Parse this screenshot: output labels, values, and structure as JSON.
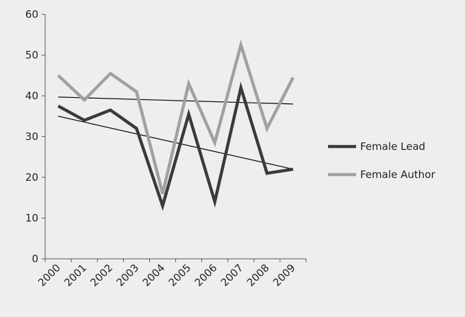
{
  "chart_data": {
    "type": "line",
    "title": "",
    "xlabel": "",
    "ylabel": "",
    "categories": [
      "2000",
      "2001",
      "2002",
      "2003",
      "2004",
      "2005",
      "2006",
      "2007",
      "2008",
      "2009"
    ],
    "ylim": [
      0,
      60
    ],
    "yticks": [
      0,
      10,
      20,
      30,
      40,
      50,
      60
    ],
    "grid": false,
    "legend_position": "right",
    "series": [
      {
        "name": "Female Lead",
        "color": "#3a3a3a",
        "values": [
          37.5,
          34,
          36.5,
          32,
          13,
          35.5,
          14,
          42,
          21,
          22
        ]
      },
      {
        "name": "Female Author",
        "color": "#a0a0a0",
        "values": [
          45,
          39,
          45.5,
          41,
          16,
          43,
          28.5,
          52.5,
          32,
          44.5
        ]
      }
    ],
    "trendlines": [
      {
        "series": "Female Lead",
        "start": 35,
        "end": 22,
        "color": "#000000"
      },
      {
        "series": "Female Author",
        "start": 39.7,
        "end": 38,
        "color": "#000000"
      }
    ]
  }
}
